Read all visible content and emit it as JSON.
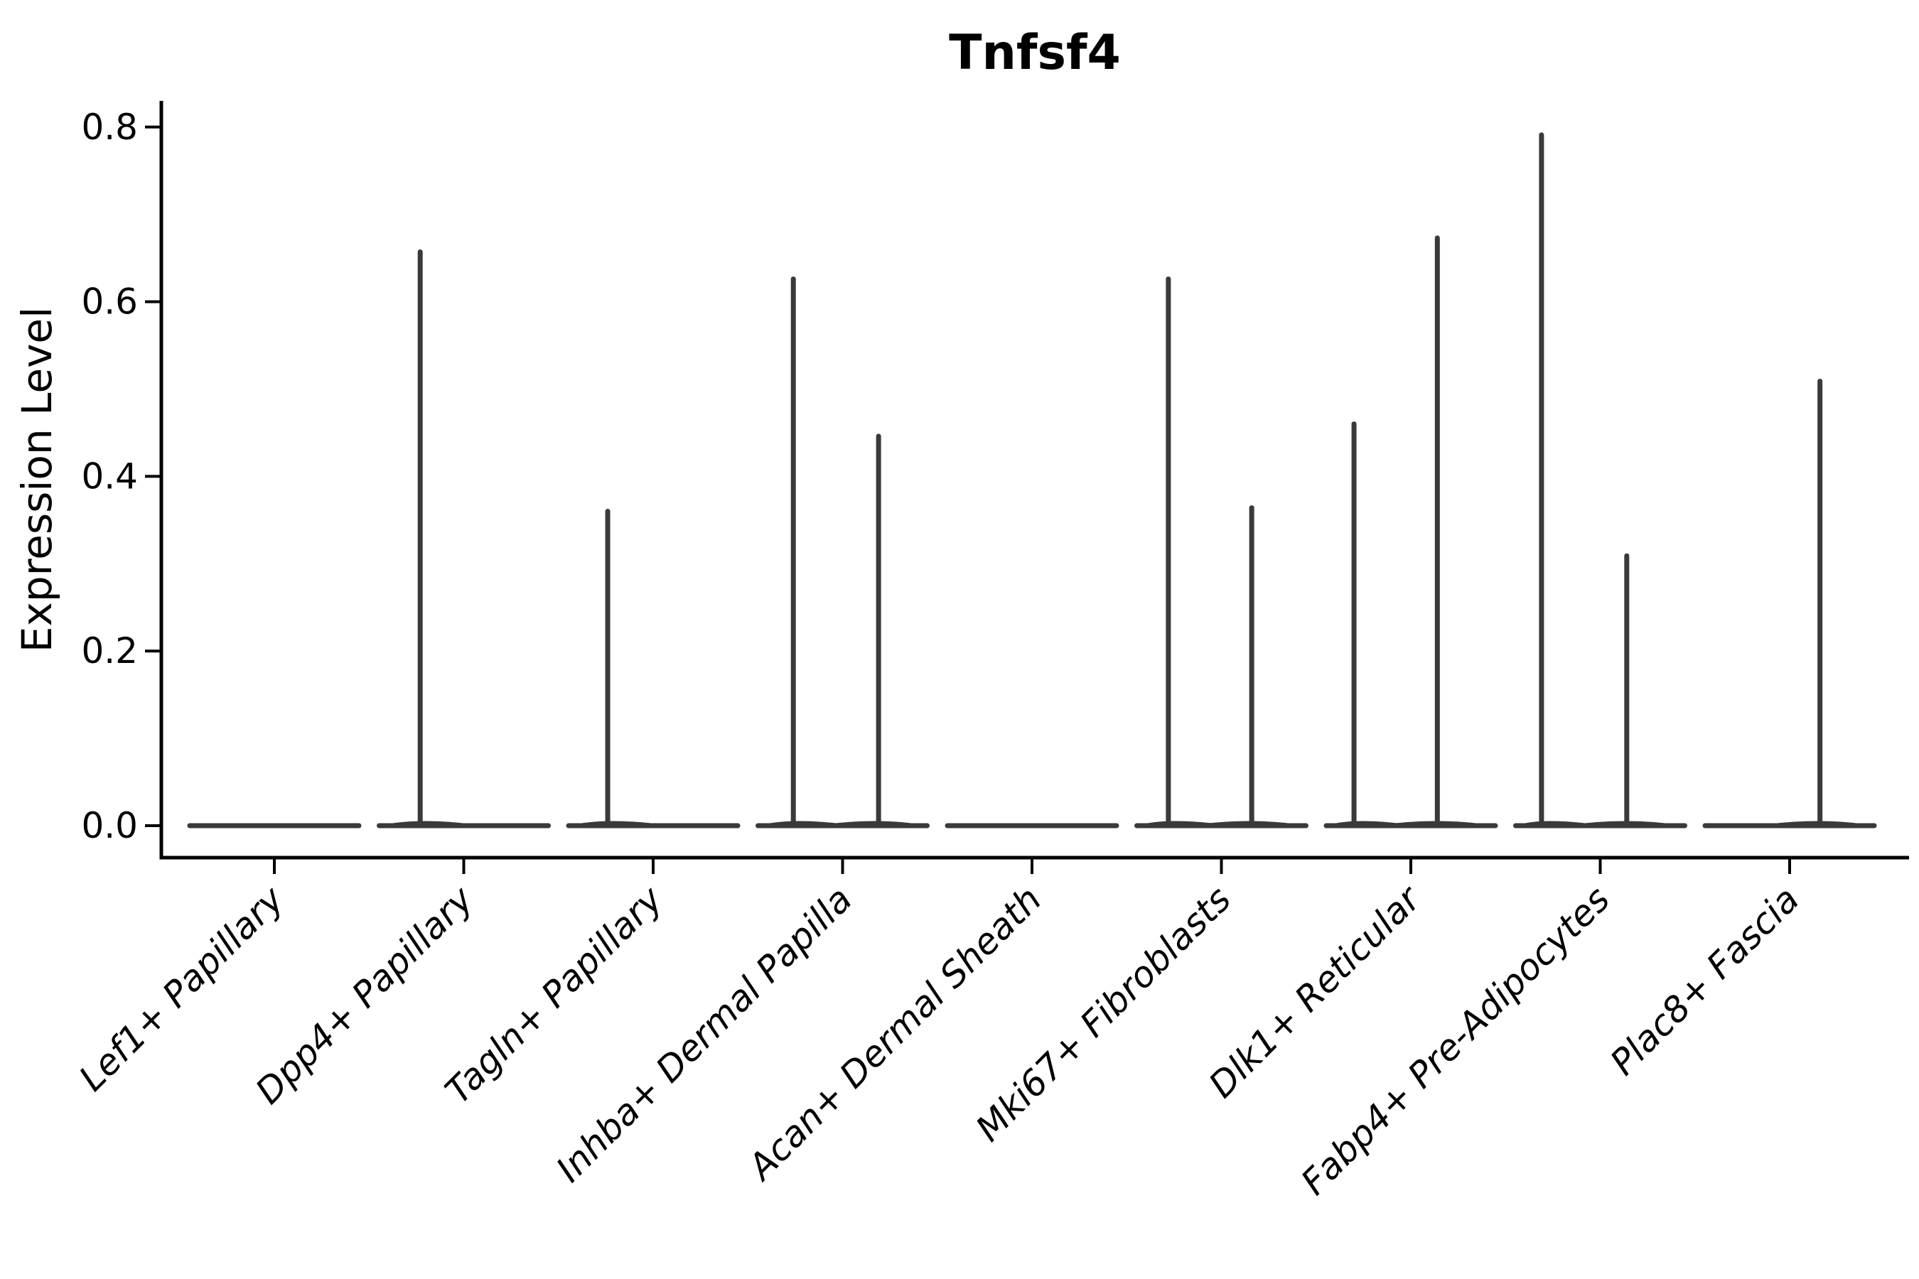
{
  "chart_data": {
    "type": "violin",
    "title": "Tnfsf4",
    "ylabel": "Expression Level",
    "xlabel": "",
    "ylim": [
      0,
      0.83
    ],
    "ytick_labels": [
      "0.0",
      "0.2",
      "0.4",
      "0.6",
      "0.8"
    ],
    "ytick_values": [
      0.0,
      0.2,
      0.4,
      0.6,
      0.8
    ],
    "grid": false,
    "legend": "none",
    "violin_color": "#3a3a3a",
    "axis_color": "#000000",
    "categories": [
      "Lef1+ Papillary",
      "Dpp4+ Papillary",
      "Tagln+ Papillary",
      "Inhba+ Dermal Papilla",
      "Acan+ Dermal Sheath",
      "Mki67+ Fibroblasts",
      "Dlk1+ Reticular",
      "Fabp4+ Pre-Adipocytes",
      "Plac8+ Fascia"
    ],
    "series": [
      {
        "category": "Lef1+ Papillary",
        "base_value": 0.0,
        "spikes": []
      },
      {
        "category": "Dpp4+ Papillary",
        "base_value": 0.0,
        "spikes": [
          {
            "offset": -0.23,
            "value": 0.657
          }
        ]
      },
      {
        "category": "Tagln+ Papillary",
        "base_value": 0.0,
        "spikes": [
          {
            "offset": -0.24,
            "value": 0.36
          }
        ]
      },
      {
        "category": "Inhba+ Dermal Papilla",
        "base_value": 0.0,
        "spikes": [
          {
            "offset": -0.26,
            "value": 0.626
          },
          {
            "offset": 0.19,
            "value": 0.446
          }
        ]
      },
      {
        "category": "Acan+ Dermal Sheath",
        "base_value": 0.0,
        "spikes": []
      },
      {
        "category": "Mki67+ Fibroblasts",
        "base_value": 0.0,
        "spikes": [
          {
            "offset": -0.28,
            "value": 0.626
          },
          {
            "offset": 0.16,
            "value": 0.364
          }
        ]
      },
      {
        "category": "Dlk1+ Reticular",
        "base_value": 0.0,
        "spikes": [
          {
            "offset": -0.3,
            "value": 0.46
          },
          {
            "offset": 0.14,
            "value": 0.673
          }
        ]
      },
      {
        "category": "Fabp4+ Pre-Adipocytes",
        "base_value": 0.0,
        "spikes": [
          {
            "offset": -0.31,
            "value": 0.791
          },
          {
            "offset": 0.14,
            "value": 0.309
          }
        ]
      },
      {
        "category": "Plac8+ Fascia",
        "base_value": 0.0,
        "spikes": [
          {
            "offset": 0.16,
            "value": 0.509
          }
        ]
      }
    ]
  }
}
